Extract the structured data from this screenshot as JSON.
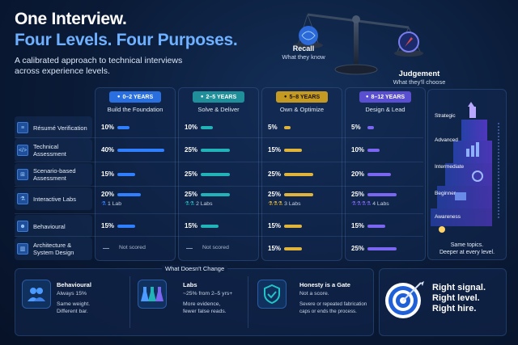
{
  "header": {
    "title_line1": "One Interview.",
    "title_line2": "Four Levels. Four Purposes.",
    "subtitle": "A calibrated approach to technical interviews across experience levels."
  },
  "scale": {
    "left_label": "Recall",
    "left_sub": "What they know",
    "right_label": "Judgement",
    "right_sub": "What they'll choose"
  },
  "levels": [
    {
      "years": "0–2 YEARS",
      "focus": "Build the Foundation",
      "pill_bg": "#2a6fe0",
      "pill_fg": "#ffffff",
      "bar_color": "#2f7fff",
      "labs_count": 1
    },
    {
      "years": "2–5 YEARS",
      "focus": "Solve & Deliver",
      "pill_bg": "#1f8f9a",
      "pill_fg": "#ffffff",
      "bar_color": "#22b3b8",
      "labs_count": 2
    },
    {
      "years": "5–8 YEARS",
      "focus": "Own & Optimize",
      "pill_bg": "#c49a22",
      "pill_fg": "#1a1200",
      "bar_color": "#e0b43a",
      "labs_count": 3
    },
    {
      "years": "8–12 YEARS",
      "focus": "Design & Lead",
      "pill_bg": "#5a4fd0",
      "pill_fg": "#ffffff",
      "bar_color": "#7a66f0",
      "labs_count": 4
    }
  ],
  "rows": [
    {
      "label": "Résumé Verification",
      "icon": "document-icon",
      "cells": [
        {
          "pct": "10%",
          "value": 10
        },
        {
          "pct": "10%",
          "value": 10
        },
        {
          "pct": "5%",
          "value": 5
        },
        {
          "pct": "5%",
          "value": 5
        }
      ]
    },
    {
      "label": "Technical Assessment",
      "icon": "code-icon",
      "cells": [
        {
          "pct": "40%",
          "value": 40
        },
        {
          "pct": "25%",
          "value": 25
        },
        {
          "pct": "15%",
          "value": 15
        },
        {
          "pct": "10%",
          "value": 10
        }
      ]
    },
    {
      "label": "Scenario-based Assessment",
      "icon": "flowchart-icon",
      "cells": [
        {
          "pct": "15%",
          "value": 15
        },
        {
          "pct": "25%",
          "value": 25
        },
        {
          "pct": "25%",
          "value": 25
        },
        {
          "pct": "20%",
          "value": 20
        }
      ]
    },
    {
      "label": "Interactive Labs",
      "icon": "flask-icon",
      "cells": [
        {
          "pct": "20%",
          "value": 20,
          "lab": "1 Lab"
        },
        {
          "pct": "25%",
          "value": 25,
          "lab": "2 Labs"
        },
        {
          "pct": "25%",
          "value": 25,
          "lab": "3 Labs"
        },
        {
          "pct": "25%",
          "value": 25,
          "lab": "4 Labs"
        }
      ]
    },
    {
      "label": "Behavioural",
      "icon": "people-icon",
      "cells": [
        {
          "pct": "15%",
          "value": 15
        },
        {
          "pct": "15%",
          "value": 15
        },
        {
          "pct": "15%",
          "value": 15
        },
        {
          "pct": "15%",
          "value": 15
        }
      ]
    },
    {
      "label": "Architecture & System Design",
      "icon": "building-icon",
      "cells": [
        {
          "pct": "",
          "value": 0,
          "ns": "Not scored"
        },
        {
          "pct": "",
          "value": 0,
          "ns": "Not scored"
        },
        {
          "pct": "15%",
          "value": 15
        },
        {
          "pct": "25%",
          "value": 25
        }
      ]
    }
  ],
  "pyramid": {
    "levels": [
      "Strategic",
      "Advanced",
      "Intermediate",
      "Beginner",
      "Awareness"
    ],
    "caption_line1": "Same topics.",
    "caption_line2": "Deeper at every level."
  },
  "bottom": {
    "title": "What Doesn't Change",
    "items": [
      {
        "head": "Behavioural",
        "line1": "Always 15%",
        "line2": "Same weight.",
        "line3": "Different bar."
      },
      {
        "head": "Labs",
        "line1": "~25% from 2–5 yrs+",
        "line2": "More evidence,",
        "line3": "fewer false reads."
      },
      {
        "head": "Honesty is a Gate",
        "line1": "Not a score.",
        "line2": "Severe or repeated fabrication",
        "line3": "caps or ends the process."
      }
    ]
  },
  "right": {
    "line1": "Right signal.",
    "line2": "Right level.",
    "line3": "Right hire."
  },
  "colors": {
    "accent_blue": "#6fb0ff",
    "background": "#0a1a36"
  }
}
